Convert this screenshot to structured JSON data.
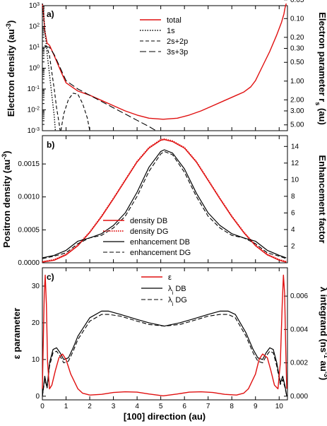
{
  "colors": {
    "red": "#e01010",
    "black": "#000000"
  },
  "chart_data": [
    {
      "panel": "a)",
      "type": "line",
      "xlim": [
        0,
        10.35
      ],
      "ylabel": "Electron density (au",
      "ylabel_sup": "-3",
      "ylabel_tail": ")",
      "y2label": "Electron parameter r",
      "y2label_sub": "s",
      "y2label_tail": " (au)",
      "yscale": "log",
      "ylim_exp": [
        -3,
        3
      ],
      "ytick_exps": [
        "-3",
        "-2",
        "-1",
        "0",
        "1",
        "2",
        "3"
      ],
      "y2ticks": [
        {
          "label": "0.05",
          "at_exp": 3.28
        },
        {
          "label": "0.10",
          "at_exp": 2.38
        },
        {
          "label": "0.20",
          "at_exp": 1.48
        },
        {
          "label": "0.30",
          "at_exp": 0.95
        },
        {
          "label": "0.50",
          "at_exp": 0.28
        },
        {
          "label": "1.00",
          "at_exp": -0.62
        },
        {
          "label": "2.00",
          "at_exp": -1.52
        },
        {
          "label": "3.00",
          "at_exp": -2.05
        },
        {
          "label": "5.00",
          "at_exp": -2.72
        }
      ],
      "legend": [
        {
          "name": "total",
          "style": "red"
        },
        {
          "name": "1s",
          "style": "dotted"
        },
        {
          "name": "2s+2p",
          "style": "dashed-short"
        },
        {
          "name": "3s+3p",
          "style": "dashed-long"
        }
      ],
      "series": [
        {
          "name": "total",
          "x": [
            0,
            0.05,
            0.1,
            0.2,
            0.3,
            0.5,
            0.8,
            1.0,
            1.5,
            2.0,
            2.5,
            3.0,
            3.5,
            4.0,
            4.5,
            5.1,
            5.7,
            6.2,
            6.7,
            7.2,
            7.7,
            8.2,
            8.5,
            8.8,
            9.0,
            9.3,
            9.6,
            9.9,
            10.1,
            10.2,
            10.25,
            10.3
          ],
          "logy": [
            3.1,
            2.6,
            1.8,
            1.2,
            1.1,
            0.6,
            -0.2,
            -0.7,
            -1.1,
            -1.3,
            -1.55,
            -1.8,
            -2.05,
            -2.25,
            -2.4,
            -2.45,
            -2.4,
            -2.25,
            -2.05,
            -1.8,
            -1.55,
            -1.3,
            -1.15,
            -0.9,
            -0.6,
            0.1,
            0.8,
            1.6,
            2.2,
            2.6,
            2.9,
            3.1
          ]
        },
        {
          "name": "1s",
          "x": [
            0,
            0.05,
            0.1,
            0.15,
            0.2,
            0.3,
            0.4,
            0.5,
            0.55
          ],
          "logy": [
            3.1,
            2.6,
            1.9,
            1.3,
            0.7,
            -0.3,
            -1.3,
            -2.3,
            -3.0
          ]
        },
        {
          "name": "2s+2p",
          "x": [
            0.1,
            0.2,
            0.3,
            0.4,
            0.5,
            0.6,
            0.7,
            0.75
          ],
          "logy": [
            1.1,
            1.0,
            0.6,
            -0.2,
            -1.0,
            -1.9,
            -2.6,
            -3.0
          ]
        },
        {
          "name": "3s+3p",
          "x": [
            0.1,
            0.3,
            0.5,
            0.8,
            1.0,
            1.5,
            2.0,
            2.5,
            3.0,
            3.5,
            4.0,
            4.5,
            4.8
          ],
          "logy": [
            1.05,
            1.0,
            0.65,
            -0.1,
            -0.6,
            -1.0,
            -1.3,
            -1.6,
            -1.9,
            -2.2,
            -2.5,
            -2.8,
            -3.0
          ]
        },
        {
          "name": "2s+2p-tail",
          "x": [
            0.78,
            0.9,
            1.1,
            1.3,
            1.5,
            1.7,
            1.9,
            2.0
          ],
          "logy": [
            -3.0,
            -2.2,
            -1.5,
            -1.2,
            -1.25,
            -1.7,
            -2.4,
            -3.0
          ]
        }
      ]
    },
    {
      "panel": "b)",
      "type": "line",
      "xlim": [
        0,
        10.35
      ],
      "ylabel": "Positron density (au",
      "ylabel_sup": "-3",
      "ylabel_tail": ")",
      "y2label": "Enhancement factor",
      "ylim": [
        0,
        0.00193
      ],
      "yticks": [
        "0.0000",
        "0.0005",
        "0.0010",
        "0.0015"
      ],
      "y2lim": [
        0,
        15.3
      ],
      "y2ticks": [
        "2",
        "4",
        "6",
        "8",
        "10",
        "12",
        "14"
      ],
      "legend": [
        {
          "name": "density DB",
          "style": "red"
        },
        {
          "name": "density DG",
          "style": "red-dotted"
        },
        {
          "name": "enhancement DB",
          "style": "solid"
        },
        {
          "name": "enhancement DG",
          "style": "dashed"
        }
      ],
      "series": [
        {
          "name": "density DB",
          "x": [
            0,
            0.5,
            1.0,
            1.5,
            2.0,
            2.5,
            3.0,
            3.5,
            4.0,
            4.5,
            5.0,
            5.15,
            5.5,
            6.0,
            6.5,
            7.0,
            7.5,
            8.0,
            8.5,
            9.0,
            9.5,
            10.0,
            10.3
          ],
          "y": [
            1e-05,
            4e-05,
            0.00012,
            0.00026,
            0.00046,
            0.0007,
            0.00097,
            0.00125,
            0.00153,
            0.00174,
            0.00186,
            0.00187,
            0.00184,
            0.00174,
            0.00153,
            0.00125,
            0.00097,
            0.0007,
            0.00046,
            0.00026,
            0.00012,
            4e-05,
            1e-05
          ]
        },
        {
          "name": "enhancement DB",
          "x": [
            0,
            0.5,
            1.0,
            1.5,
            2.0,
            2.5,
            3.0,
            3.5,
            4.0,
            4.5,
            5.0,
            5.15,
            5.5,
            6.0,
            6.5,
            7.0,
            7.5,
            8.0,
            8.5,
            9.0,
            9.5,
            10.0,
            10.3
          ],
          "y": [
            0.6,
            0.9,
            1.5,
            2.6,
            3.0,
            3.5,
            4.5,
            6.0,
            8.5,
            11.5,
            13.4,
            13.6,
            13.2,
            11.3,
            8.4,
            6.0,
            4.5,
            3.5,
            3.0,
            2.6,
            1.5,
            0.9,
            0.6
          ]
        },
        {
          "name": "enhancement DG",
          "x": [
            0,
            0.5,
            1.0,
            1.5,
            2.0,
            2.5,
            3.0,
            3.5,
            4.0,
            4.5,
            5.0,
            5.15,
            5.5,
            6.0,
            6.5,
            7.0,
            7.5,
            8.0,
            8.5,
            9.0,
            9.5,
            10.0,
            10.3
          ],
          "y": [
            0.5,
            0.8,
            1.2,
            2.3,
            3.0,
            3.3,
            4.2,
            5.6,
            8.0,
            11.0,
            13.1,
            13.4,
            13.0,
            10.9,
            8.0,
            5.6,
            4.2,
            3.3,
            3.0,
            2.3,
            1.2,
            0.8,
            0.5
          ]
        }
      ]
    },
    {
      "panel": "c)",
      "type": "line",
      "xlim": [
        0,
        10.35
      ],
      "xlabel": "[100] direction (au)",
      "xticks": [
        "0",
        "1",
        "2",
        "3",
        "4",
        "5",
        "6",
        "7",
        "8",
        "9",
        "10"
      ],
      "ylabel": "ε parameter",
      "y2label": "λ integrand (ns",
      "y2label_sup": "-1",
      "y2label_mid": "au",
      "y2label_sup2": "-3",
      "y2label_tail": ")",
      "ylim": [
        -1,
        35
      ],
      "yticks": [
        "0",
        "10",
        "20",
        "30"
      ],
      "y2lim": [
        -0.00022,
        0.0077
      ],
      "y2ticks": [
        "0.000",
        "0.002",
        "0.004",
        "0.006"
      ],
      "legend": [
        {
          "name": "ε",
          "style": "red"
        },
        {
          "name": "λ",
          "sub": "i",
          "suffix": " DB",
          "style": "solid"
        },
        {
          "name": "λ",
          "sub": "i",
          "suffix": " DG",
          "style": "dashed"
        }
      ],
      "series": [
        {
          "name": "epsilon",
          "x": [
            0,
            0.03,
            0.08,
            0.12,
            0.17,
            0.22,
            0.3,
            0.4,
            0.55,
            0.7,
            0.85,
            1.0,
            1.2,
            1.5,
            1.7,
            2.0,
            2.5,
            3.0,
            3.5,
            4.0,
            4.5,
            5.1,
            5.7,
            6.2,
            6.7,
            7.2,
            7.7,
            8.2,
            8.5,
            8.7,
            9.0,
            9.15,
            9.3,
            9.5,
            9.65,
            9.8,
            9.95,
            10.05,
            10.13,
            10.18,
            10.23,
            10.28,
            10.32
          ],
          "y": [
            2,
            12,
            28,
            33,
            25,
            9,
            2,
            3,
            7,
            10.5,
            11.5,
            10,
            6,
            2,
            0.8,
            0.3,
            0.5,
            1,
            1.2,
            1.1,
            0.6,
            0.1,
            0.6,
            1.1,
            1.2,
            1,
            0.5,
            0.3,
            0.8,
            2,
            6,
            10,
            11.5,
            10.5,
            7,
            3,
            2,
            9,
            25,
            33,
            28,
            12,
            2
          ]
        },
        {
          "name": "lambda DB",
          "x": [
            0,
            0.1,
            0.2,
            0.3,
            0.45,
            0.6,
            0.75,
            0.9,
            1.1,
            1.3,
            1.5,
            2.0,
            2.5,
            2.8,
            3.3,
            4.0,
            4.5,
            5.15,
            5.8,
            6.3,
            7.0,
            7.5,
            7.85,
            8.15,
            8.6,
            8.9,
            9.1,
            9.3,
            9.45,
            9.6,
            9.75,
            9.9,
            10.05,
            10.15,
            10.25,
            10.32
          ],
          "y": [
            0,
            0.0012,
            0.0005,
            0.002,
            0.0028,
            0.0029,
            0.0026,
            0.0022,
            0.0023,
            0.0029,
            0.0036,
            0.0047,
            0.0051,
            0.0051,
            0.0049,
            0.0046,
            0.0044,
            0.0042,
            0.0044,
            0.0046,
            0.0049,
            0.0051,
            0.0051,
            0.0049,
            0.0038,
            0.0028,
            0.0023,
            0.0022,
            0.0026,
            0.0029,
            0.0028,
            0.002,
            0.0008,
            0.0012,
            0.0006,
            0
          ]
        },
        {
          "name": "lambda DG",
          "x": [
            0,
            0.1,
            0.2,
            0.3,
            0.45,
            0.6,
            0.75,
            0.9,
            1.1,
            1.3,
            1.5,
            2.0,
            2.5,
            2.8,
            3.3,
            4.0,
            4.5,
            5.15,
            5.8,
            6.3,
            7.0,
            7.5,
            7.85,
            8.15,
            8.6,
            8.9,
            9.1,
            9.3,
            9.45,
            9.6,
            9.75,
            9.9,
            10.05,
            10.15,
            10.25,
            10.32
          ],
          "y": [
            0,
            0.001,
            0.0005,
            0.0018,
            0.0026,
            0.0027,
            0.0024,
            0.002,
            0.0021,
            0.0027,
            0.0034,
            0.0045,
            0.0049,
            0.0049,
            0.0048,
            0.0045,
            0.0043,
            0.0042,
            0.0043,
            0.0045,
            0.0048,
            0.0049,
            0.0049,
            0.0047,
            0.0036,
            0.0026,
            0.0021,
            0.002,
            0.0024,
            0.0027,
            0.0026,
            0.0018,
            0.0007,
            0.001,
            0.0005,
            0
          ]
        }
      ]
    }
  ]
}
